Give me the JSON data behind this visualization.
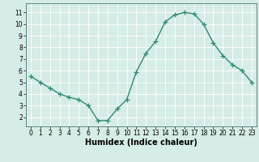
{
  "x": [
    0,
    1,
    2,
    3,
    4,
    5,
    6,
    7,
    8,
    9,
    10,
    11,
    12,
    13,
    14,
    15,
    16,
    17,
    18,
    19,
    20,
    21,
    22,
    23
  ],
  "y": [
    5.5,
    5.0,
    4.5,
    4.0,
    3.7,
    3.5,
    3.0,
    1.7,
    1.7,
    2.7,
    3.5,
    5.9,
    7.5,
    8.5,
    10.2,
    10.8,
    11.0,
    10.9,
    10.0,
    8.4,
    7.3,
    6.5,
    6.0,
    5.0
  ],
  "line_color": "#2e8b74",
  "marker": "+",
  "marker_size": 4,
  "line_width": 1.0,
  "xlabel": "Humidex (Indice chaleur)",
  "xlabel_fontsize": 7,
  "xlim": [
    -0.5,
    23.5
  ],
  "ylim": [
    1.2,
    11.8
  ],
  "yticks": [
    2,
    3,
    4,
    5,
    6,
    7,
    8,
    9,
    10,
    11
  ],
  "xticks": [
    0,
    1,
    2,
    3,
    4,
    5,
    6,
    7,
    8,
    9,
    10,
    11,
    12,
    13,
    14,
    15,
    16,
    17,
    18,
    19,
    20,
    21,
    22,
    23
  ],
  "bg_color": "#d6ece6",
  "grid_color": "#ffffff",
  "grid_linewidth": 0.6,
  "tick_fontsize": 5.5,
  "spine_color": "#4a7a70"
}
